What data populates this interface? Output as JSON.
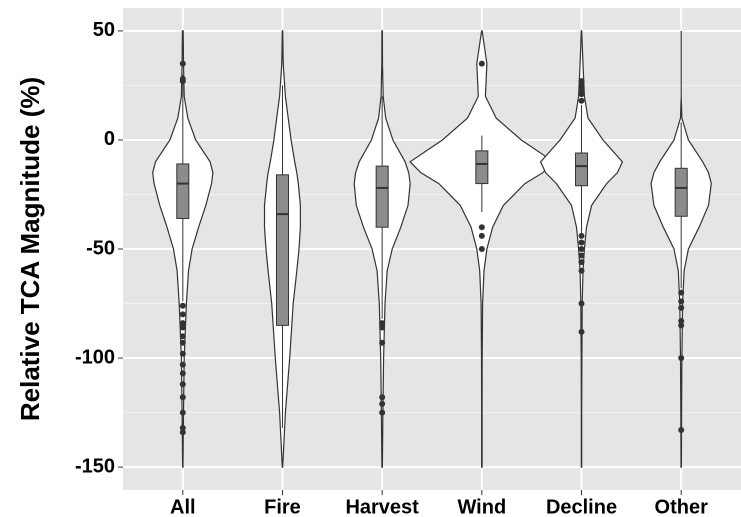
{
  "chart_data": {
    "type": "violin",
    "y_label": "Relative TCA Magnitude (%)",
    "categories": [
      "All",
      "Fire",
      "Harvest",
      "Wind",
      "Decline",
      "Other"
    ],
    "ylim": [
      -160.5,
      60.5
    ],
    "yticks": [
      50,
      0,
      -50,
      -100,
      -150
    ],
    "grid": true,
    "violin_color": "#ffffff",
    "box_color": "#8c8c8c",
    "density_y": [
      50,
      35,
      20,
      10,
      0,
      -10,
      -15,
      -20,
      -30,
      -40,
      -50,
      -60,
      -75,
      -100,
      -125,
      -150
    ],
    "density": [
      [
        0.005,
        0.01,
        0.02,
        0.07,
        0.18,
        0.38,
        0.42,
        0.4,
        0.32,
        0.22,
        0.13,
        0.08,
        0.05,
        0.02,
        0.01,
        0.003
      ],
      [
        0.003,
        0.01,
        0.04,
        0.08,
        0.12,
        0.17,
        0.2,
        0.22,
        0.25,
        0.25,
        0.23,
        0.2,
        0.15,
        0.1,
        0.04,
        0.003
      ],
      [
        0.003,
        0.005,
        0.015,
        0.05,
        0.15,
        0.32,
        0.37,
        0.39,
        0.36,
        0.26,
        0.14,
        0.07,
        0.04,
        0.02,
        0.01,
        0.003
      ],
      [
        0.003,
        0.07,
        0.05,
        0.2,
        0.55,
        1.0,
        0.85,
        0.6,
        0.3,
        0.15,
        0.07,
        0.03,
        0.01,
        0.005,
        0.003,
        0.003
      ],
      [
        0.003,
        0.02,
        0.04,
        0.09,
        0.3,
        0.57,
        0.5,
        0.35,
        0.14,
        0.07,
        0.04,
        0.02,
        0.01,
        0.005,
        0.003,
        0.003
      ],
      [
        0,
        0,
        0,
        0.01,
        0.1,
        0.3,
        0.38,
        0.42,
        0.38,
        0.25,
        0.1,
        0.04,
        0.02,
        0.01,
        0.005,
        0.003
      ]
    ],
    "boxes": [
      {
        "whisker_low": -74,
        "q1": -36,
        "median": -20,
        "q3": -11,
        "whisker_high": 30
      },
      {
        "whisker_low": -132,
        "q1": -85,
        "median": -34,
        "q3": -16,
        "whisker_high": 25
      },
      {
        "whisker_low": -82,
        "q1": -40,
        "median": -22,
        "q3": -12,
        "whisker_high": 20
      },
      {
        "whisker_low": -33,
        "q1": -20,
        "median": -11,
        "q3": -5,
        "whisker_high": 2
      },
      {
        "whisker_low": -43,
        "q1": -21,
        "median": -12,
        "q3": -6,
        "whisker_high": 16
      },
      {
        "whisker_low": -68,
        "q1": -35,
        "median": -22,
        "q3": -13,
        "whisker_high": 8
      }
    ],
    "outliers": [
      [
        35,
        28,
        27,
        -76,
        -80,
        -84,
        -86,
        -90,
        -93,
        -98,
        -103,
        -107,
        -112,
        -118,
        -125,
        -132,
        -134
      ],
      [],
      [
        -84,
        -86,
        -93,
        -118,
        -121,
        -125
      ],
      [
        35,
        -40,
        -44,
        -50
      ],
      [
        27,
        25,
        23,
        21,
        18,
        -44,
        -47,
        -50,
        -53,
        -56,
        -60,
        -75,
        -88
      ],
      [
        -70,
        -74,
        -77,
        -83,
        -85,
        -100,
        -133
      ]
    ]
  }
}
